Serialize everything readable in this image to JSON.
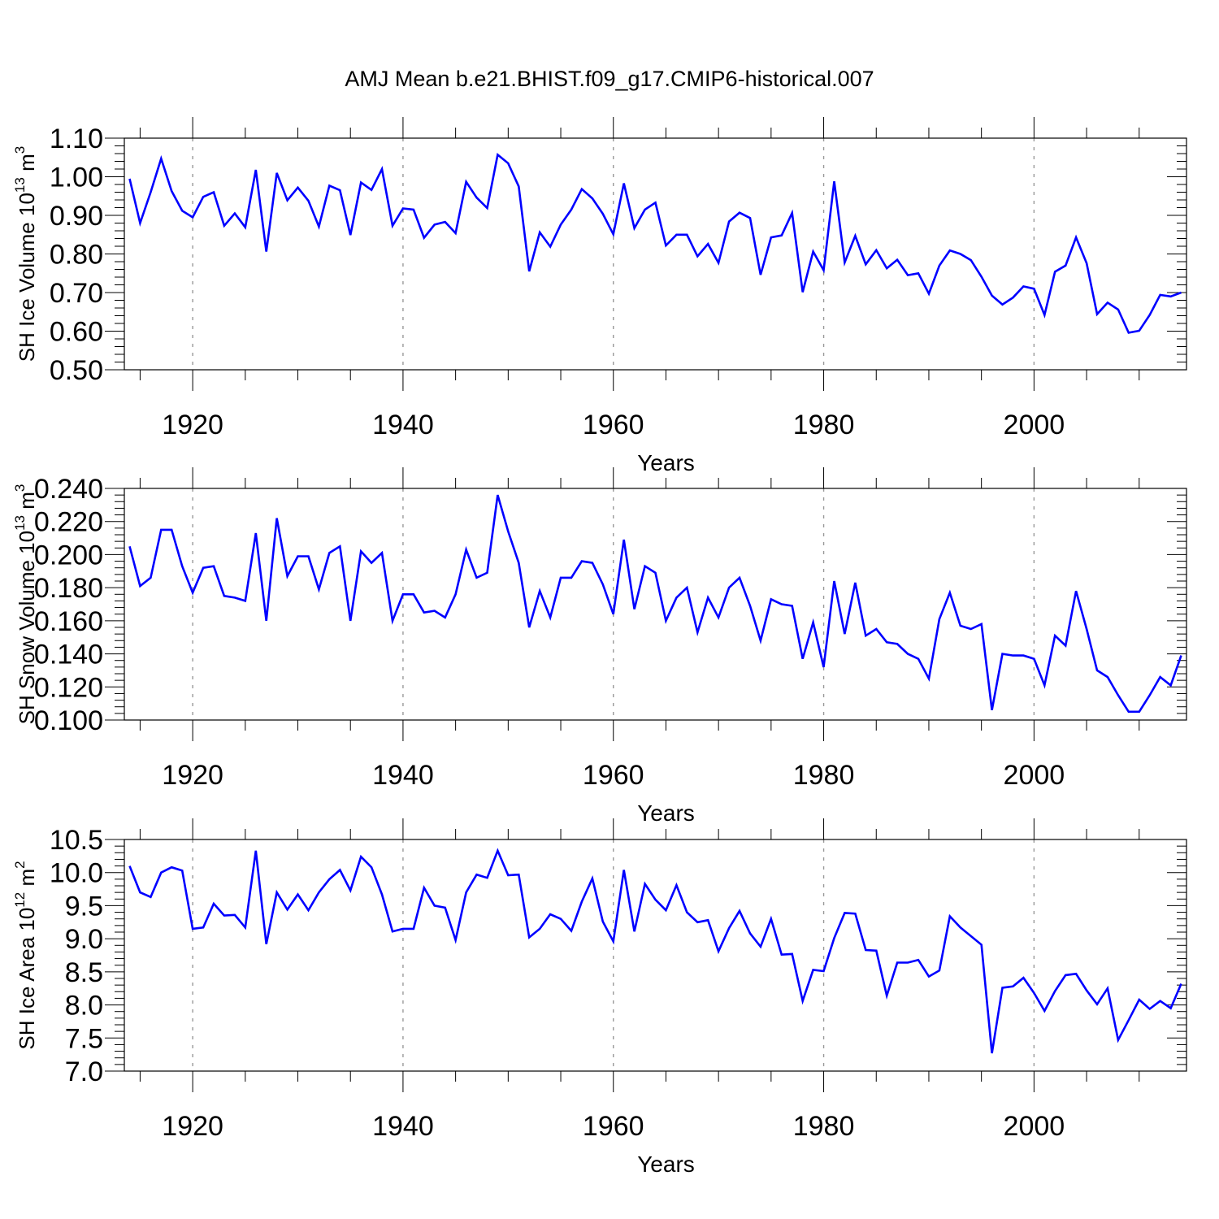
{
  "title": "AMJ Mean b.e21.BHIST.f09_g17.CMIP6-historical.007",
  "colors": {
    "series": "#0000ff",
    "axis": "#000000",
    "grid": "#999999",
    "background": "#ffffff"
  },
  "chart_data": [
    {
      "type": "line",
      "ylabel": "SH Ice Volume 10",
      "ylabel_exp": "13",
      "ylabel_unit": " m",
      "ylabel_unit_exp": "3",
      "xlabel": "Years",
      "xlim": [
        1913.5,
        2014.5
      ],
      "ylim": [
        0.5,
        1.1
      ],
      "x_ticks": [
        "1920",
        "1940",
        "1960",
        "1980",
        "2000"
      ],
      "y_ticks": [
        "0.50",
        "0.60",
        "0.70",
        "0.80",
        "0.90",
        "1.00",
        "1.10"
      ],
      "vertical_grid": true,
      "x_start": 1914,
      "x_step": 1,
      "values": [
        0.995,
        0.88,
        0.96,
        1.047,
        0.963,
        0.912,
        0.895,
        0.948,
        0.96,
        0.873,
        0.905,
        0.869,
        1.018,
        0.806,
        1.01,
        0.939,
        0.972,
        0.938,
        0.871,
        0.977,
        0.965,
        0.849,
        0.985,
        0.966,
        1.02,
        0.873,
        0.918,
        0.915,
        0.842,
        0.876,
        0.883,
        0.854,
        0.987,
        0.946,
        0.919,
        1.057,
        1.035,
        0.975,
        0.755,
        0.856,
        0.819,
        0.876,
        0.915,
        0.968,
        0.944,
        0.904,
        0.851,
        0.983,
        0.867,
        0.915,
        0.933,
        0.822,
        0.85,
        0.85,
        0.794,
        0.826,
        0.777,
        0.884,
        0.907,
        0.893,
        0.746,
        0.843,
        0.848,
        0.906,
        0.701,
        0.806,
        0.758,
        0.988,
        0.778,
        0.847,
        0.773,
        0.81,
        0.763,
        0.785,
        0.745,
        0.75,
        0.697,
        0.77,
        0.809,
        0.8,
        0.784,
        0.741,
        0.692,
        0.669,
        0.687,
        0.716,
        0.71,
        0.642,
        0.754,
        0.77,
        0.843,
        0.776,
        0.644,
        0.674,
        0.656,
        0.596,
        0.601,
        0.642,
        0.694,
        0.69,
        0.7
      ]
    },
    {
      "type": "line",
      "ylabel": "SH Snow Volume 10",
      "ylabel_exp": "13",
      "ylabel_unit": " m",
      "ylabel_unit_exp": "3",
      "xlabel": "Years",
      "xlim": [
        1913.5,
        2014.5
      ],
      "ylim": [
        0.1,
        0.24
      ],
      "x_ticks": [
        "1920",
        "1940",
        "1960",
        "1980",
        "2000"
      ],
      "y_ticks": [
        "0.100",
        "0.120",
        "0.140",
        "0.160",
        "0.180",
        "0.200",
        "0.220",
        "0.240"
      ],
      "vertical_grid": true,
      "x_start": 1914,
      "x_step": 1,
      "values": [
        0.205,
        0.181,
        0.186,
        0.215,
        0.215,
        0.193,
        0.177,
        0.192,
        0.193,
        0.175,
        0.174,
        0.172,
        0.213,
        0.16,
        0.222,
        0.187,
        0.199,
        0.199,
        0.179,
        0.201,
        0.205,
        0.16,
        0.202,
        0.195,
        0.201,
        0.16,
        0.176,
        0.176,
        0.165,
        0.166,
        0.162,
        0.176,
        0.203,
        0.186,
        0.189,
        0.236,
        0.214,
        0.195,
        0.156,
        0.178,
        0.162,
        0.186,
        0.186,
        0.196,
        0.195,
        0.182,
        0.164,
        0.209,
        0.167,
        0.193,
        0.189,
        0.16,
        0.174,
        0.18,
        0.153,
        0.174,
        0.162,
        0.18,
        0.186,
        0.169,
        0.148,
        0.173,
        0.17,
        0.169,
        0.137,
        0.159,
        0.132,
        0.184,
        0.152,
        0.183,
        0.151,
        0.155,
        0.147,
        0.146,
        0.14,
        0.137,
        0.125,
        0.161,
        0.177,
        0.157,
        0.155,
        0.158,
        0.106,
        0.14,
        0.139,
        0.139,
        0.137,
        0.121,
        0.151,
        0.145,
        0.178,
        0.155,
        0.13,
        0.126,
        0.115,
        0.105,
        0.105,
        0.115,
        0.126,
        0.121,
        0.139
      ]
    },
    {
      "type": "line",
      "ylabel": "SH Ice Area 10",
      "ylabel_exp": "12",
      "ylabel_unit": " m",
      "ylabel_unit_exp": "2",
      "xlabel": "Years",
      "xlim": [
        1913.5,
        2014.5
      ],
      "ylim": [
        7.0,
        10.5
      ],
      "x_ticks": [
        "1920",
        "1940",
        "1960",
        "1980",
        "2000"
      ],
      "y_ticks": [
        "7.0",
        "7.5",
        "8.0",
        "8.5",
        "9.0",
        "9.5",
        "10.0",
        "10.5"
      ],
      "vertical_grid": true,
      "x_start": 1914,
      "x_step": 1,
      "values": [
        10.1,
        9.7,
        9.63,
        10.0,
        10.08,
        10.03,
        9.15,
        9.17,
        9.53,
        9.35,
        9.36,
        9.17,
        10.33,
        8.92,
        9.7,
        9.44,
        9.67,
        9.43,
        9.7,
        9.9,
        10.04,
        9.73,
        10.24,
        10.08,
        9.67,
        9.11,
        9.15,
        9.15,
        9.77,
        9.5,
        9.47,
        8.98,
        9.7,
        9.97,
        9.92,
        10.33,
        9.96,
        9.97,
        9.02,
        9.15,
        9.37,
        9.3,
        9.12,
        9.56,
        9.91,
        9.26,
        8.96,
        10.04,
        9.11,
        9.83,
        9.59,
        9.43,
        9.81,
        9.4,
        9.25,
        9.28,
        8.81,
        9.16,
        9.42,
        9.08,
        8.88,
        9.3,
        8.76,
        8.77,
        8.06,
        8.53,
        8.51,
        9.01,
        9.39,
        9.38,
        8.83,
        8.82,
        8.14,
        8.64,
        8.64,
        8.68,
        8.43,
        8.52,
        9.34,
        9.17,
        9.04,
        8.91,
        7.27,
        8.26,
        8.28,
        8.41,
        8.18,
        7.91,
        8.21,
        8.45,
        8.47,
        8.22,
        8.01,
        8.25,
        7.47,
        7.77,
        8.08,
        7.94,
        8.06,
        7.95,
        8.32
      ]
    }
  ]
}
